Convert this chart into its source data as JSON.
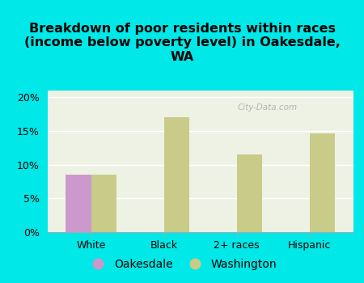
{
  "title": "Breakdown of poor residents within races\n(income below poverty level) in Oakesdale,\nWA",
  "categories": [
    "White",
    "Black",
    "2+ races",
    "Hispanic"
  ],
  "oakesdale_values": [
    8.5,
    0,
    0,
    0
  ],
  "washington_values": [
    8.5,
    17.0,
    11.5,
    14.7
  ],
  "oakesdale_color": "#cc99cc",
  "washington_color": "#c8cc88",
  "background_color": "#00e8e8",
  "plot_bg_color": "#eef2e4",
  "yticks": [
    0,
    5,
    10,
    15,
    20
  ],
  "ylim": [
    0,
    21
  ],
  "bar_width": 0.35,
  "title_fontsize": 11.5,
  "tick_fontsize": 9,
  "legend_fontsize": 10,
  "watermark": "City-Data.com"
}
